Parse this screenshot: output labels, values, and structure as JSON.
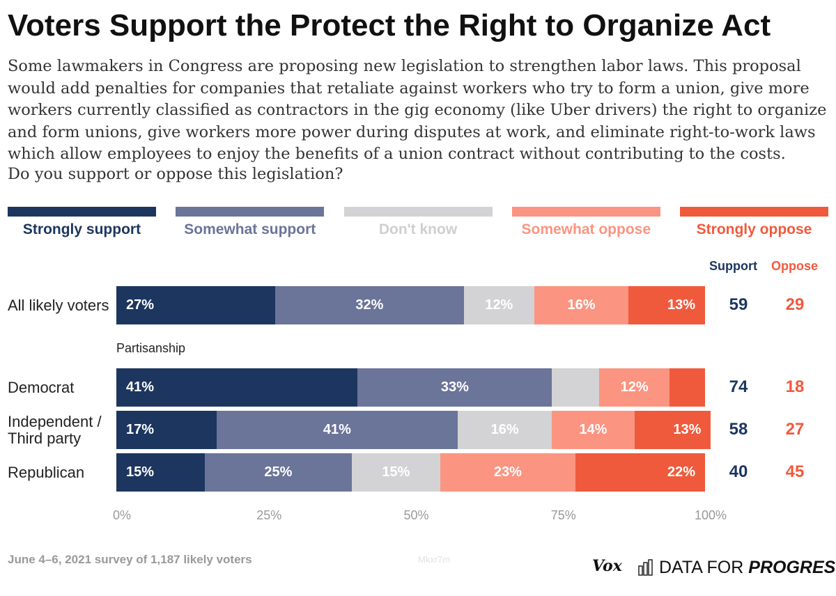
{
  "chart_data": {
    "type": "stacked-bar",
    "title": "Voters Support the Protect the Right to Organize Act",
    "subtitle": "Some lawmakers in Congress are proposing new legislation to strengthen labor laws. This proposal would add penalties for companies that retaliate against workers who try to form a union, give more workers currently classified as contractors in the gig economy (like Uber drivers) the right to organize and form unions, give workers more power during disputes at work, and eliminate right-to-work laws which allow employees to enjoy the benefits of a union contract without contributing to the costs.",
    "question": "Do you support or oppose this legislation?",
    "categories": [
      "All likely voters",
      "Democrat",
      "Independent / Third party",
      "Republican"
    ],
    "group_label": "Partisanship",
    "series": [
      {
        "name": "Strongly support",
        "color": "#1c365f",
        "values": [
          27,
          41,
          17,
          15
        ],
        "value_labels": [
          "27%",
          "41%",
          "17%",
          "15%"
        ]
      },
      {
        "name": "Somewhat support",
        "color": "#6b7499",
        "values": [
          32,
          33,
          41,
          25
        ],
        "value_labels": [
          "32%",
          "33%",
          "41%",
          "25%"
        ]
      },
      {
        "name": "Don't know",
        "color": "#d3d3d5",
        "values": [
          12,
          8,
          16,
          15
        ],
        "value_labels": [
          "12%",
          null,
          "16%",
          "15%"
        ]
      },
      {
        "name": "Somewhat oppose",
        "color": "#fb9480",
        "values": [
          16,
          12,
          14,
          23
        ],
        "value_labels": [
          "16%",
          "12%",
          "14%",
          "23%"
        ]
      },
      {
        "name": "Strongly oppose",
        "color": "#f05a3c",
        "values": [
          13,
          6,
          13,
          22
        ],
        "value_labels": [
          "13%",
          null,
          "13%",
          "22%"
        ]
      }
    ],
    "xlim": [
      0,
      100
    ],
    "xticks": [
      {
        "value": 0,
        "label": "0%"
      },
      {
        "value": 25,
        "label": "25%"
      },
      {
        "value": 50,
        "label": "50%"
      },
      {
        "value": 75,
        "label": "75%"
      },
      {
        "value": 100,
        "label": "100%"
      }
    ],
    "support_label": "Support",
    "support": [
      59,
      74,
      58,
      40
    ],
    "oppose_label": "Oppose",
    "oppose": [
      29,
      18,
      27,
      45
    ],
    "source": "June 4–6, 2021 survey of 1,187 likely voters",
    "code": "Mkxr7m",
    "logo_vox": "Vox",
    "logo_dfp_a": "DATA FOR",
    "logo_dfp_b": "PROGRESS"
  }
}
